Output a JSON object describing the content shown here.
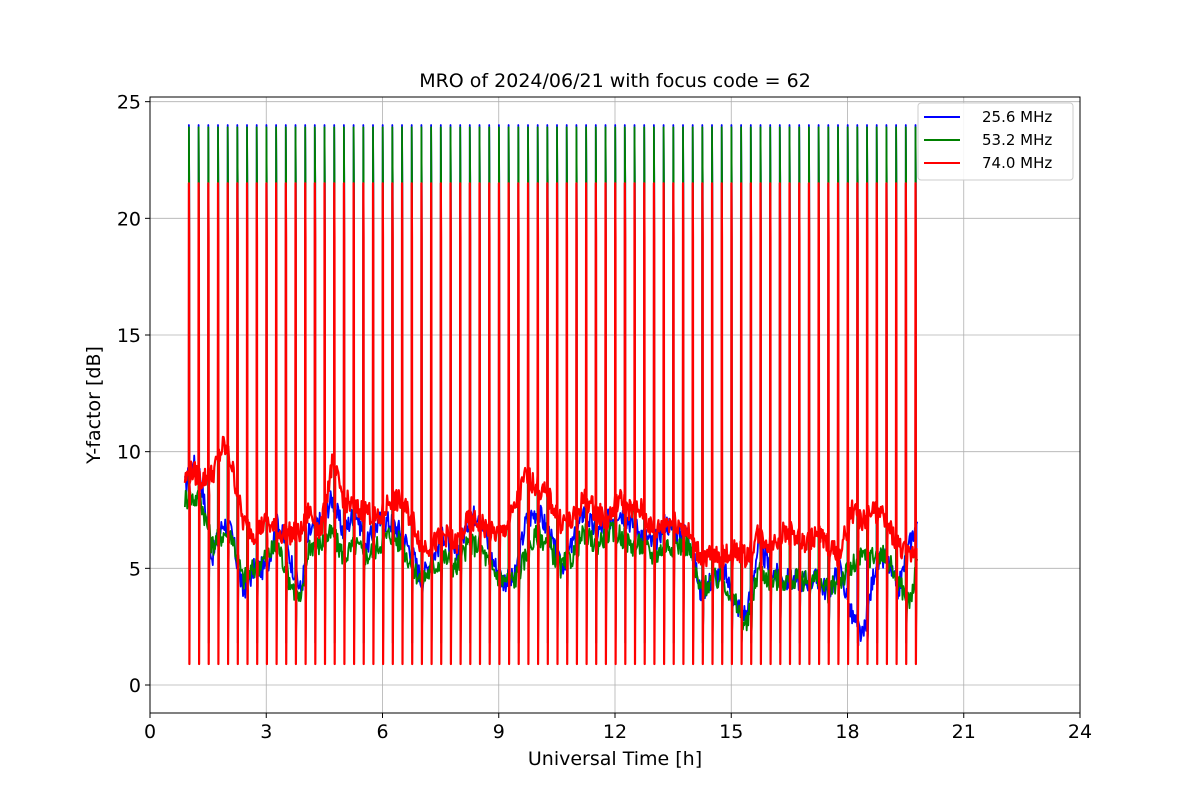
{
  "chart_data": {
    "type": "line",
    "title": "MRO of 2024/06/21 with focus code = 62",
    "xlabel": "Universal Time [h]",
    "ylabel": "Y-factor [dB]",
    "xlim": [
      0,
      24
    ],
    "ylim": [
      -1.2,
      25.2
    ],
    "xticks": [
      0,
      3,
      6,
      9,
      12,
      15,
      18,
      21,
      24
    ],
    "yticks": [
      0,
      5,
      10,
      15,
      20,
      25
    ],
    "grid": true,
    "legend_position": "top-right",
    "series": [
      {
        "name": "25.6 MHz",
        "color": "#0000ff",
        "baseline_x": [
          0.9,
          1.1,
          1.3,
          1.6,
          1.9,
          2.1,
          2.4,
          2.7,
          3.0,
          3.3,
          3.6,
          3.9,
          4.1,
          4.4,
          4.7,
          5.0,
          5.3,
          5.6,
          5.9,
          6.2,
          6.5,
          6.8,
          7.0,
          7.3,
          7.6,
          7.9,
          8.2,
          8.5,
          8.8,
          9.1,
          9.4,
          9.7,
          10.0,
          10.3,
          10.6,
          10.9,
          11.2,
          11.5,
          11.8,
          12.1,
          12.4,
          12.7,
          13.0,
          13.3,
          13.6,
          13.9,
          14.2,
          14.5,
          14.8,
          15.1,
          15.4,
          15.7,
          16.0,
          16.3,
          16.6,
          16.9,
          17.2,
          17.5,
          17.8,
          18.1,
          18.4,
          18.7,
          19.0,
          19.3,
          19.6,
          19.8
        ],
        "baseline_y": [
          8.5,
          9.5,
          9.0,
          5.5,
          7.0,
          6.5,
          4.0,
          5.0,
          5.0,
          7.0,
          5.5,
          4.0,
          6.5,
          7.0,
          8.0,
          6.5,
          7.5,
          6.0,
          7.0,
          7.0,
          6.5,
          5.5,
          4.5,
          5.5,
          6.5,
          5.5,
          7.0,
          7.5,
          5.5,
          4.5,
          4.5,
          7.0,
          7.5,
          6.5,
          5.0,
          6.0,
          7.5,
          6.5,
          7.0,
          7.5,
          7.0,
          6.5,
          6.0,
          7.0,
          6.5,
          6.5,
          4.0,
          4.5,
          5.0,
          3.5,
          3.0,
          6.0,
          5.0,
          4.5,
          4.5,
          4.5,
          4.5,
          4.0,
          5.0,
          3.0,
          2.0,
          5.0,
          5.5,
          4.0,
          6.0,
          7.0
        ],
        "peak": 24.0,
        "trough": 1.8
      },
      {
        "name": "53.2 MHz",
        "color": "#008000",
        "baseline_x": [
          0.9,
          1.1,
          1.3,
          1.6,
          1.9,
          2.1,
          2.4,
          2.7,
          3.0,
          3.3,
          3.6,
          3.9,
          4.1,
          4.4,
          4.7,
          5.0,
          5.3,
          5.6,
          5.9,
          6.2,
          6.5,
          6.8,
          7.0,
          7.3,
          7.6,
          7.9,
          8.2,
          8.5,
          8.8,
          9.1,
          9.4,
          9.7,
          10.0,
          10.3,
          10.6,
          10.9,
          11.2,
          11.5,
          11.8,
          12.1,
          12.4,
          12.7,
          13.0,
          13.3,
          13.6,
          13.9,
          14.2,
          14.5,
          14.8,
          15.1,
          15.4,
          15.7,
          16.0,
          16.3,
          16.6,
          16.9,
          17.2,
          17.5,
          17.8,
          18.1,
          18.4,
          18.7,
          19.0,
          19.3,
          19.6,
          19.8
        ],
        "baseline_y": [
          8.0,
          8.0,
          8.0,
          6.0,
          6.5,
          6.5,
          4.5,
          5.0,
          5.5,
          6.0,
          4.5,
          3.5,
          6.0,
          6.0,
          6.5,
          5.5,
          6.0,
          5.5,
          6.0,
          6.5,
          6.0,
          5.0,
          4.5,
          5.0,
          5.5,
          5.0,
          6.0,
          6.0,
          5.0,
          4.5,
          4.5,
          5.5,
          6.5,
          6.0,
          5.0,
          5.5,
          6.5,
          6.0,
          6.5,
          6.5,
          6.0,
          6.0,
          5.5,
          6.0,
          6.0,
          6.0,
          4.0,
          4.5,
          4.5,
          3.5,
          2.5,
          5.0,
          4.5,
          4.5,
          4.5,
          4.5,
          4.5,
          4.0,
          4.5,
          5.0,
          5.5,
          5.5,
          5.5,
          4.5,
          3.5,
          5.0
        ],
        "peak": 23.9,
        "trough": 1.8
      },
      {
        "name": "74.0 MHz",
        "color": "#ff0000",
        "baseline_x": [
          0.9,
          1.1,
          1.3,
          1.6,
          1.9,
          2.1,
          2.4,
          2.7,
          3.0,
          3.3,
          3.6,
          3.9,
          4.1,
          4.4,
          4.7,
          5.0,
          5.3,
          5.6,
          5.9,
          6.2,
          6.5,
          6.8,
          7.0,
          7.3,
          7.6,
          7.9,
          8.2,
          8.5,
          8.8,
          9.1,
          9.4,
          9.7,
          10.0,
          10.3,
          10.6,
          10.9,
          11.2,
          11.5,
          11.8,
          12.1,
          12.4,
          12.7,
          13.0,
          13.3,
          13.6,
          13.9,
          14.2,
          14.5,
          14.8,
          15.1,
          15.4,
          15.7,
          16.0,
          16.3,
          16.6,
          16.9,
          17.2,
          17.5,
          17.8,
          18.1,
          18.4,
          18.7,
          19.0,
          19.3,
          19.6,
          19.8
        ],
        "baseline_y": [
          8.8,
          9.2,
          8.8,
          9.0,
          10.3,
          9.5,
          7.0,
          6.5,
          7.0,
          6.5,
          6.5,
          6.5,
          7.5,
          6.5,
          9.5,
          8.0,
          7.5,
          7.5,
          7.0,
          8.0,
          7.8,
          7.0,
          6.0,
          6.0,
          6.5,
          6.0,
          7.0,
          7.0,
          6.5,
          6.5,
          7.5,
          9.0,
          8.5,
          8.0,
          7.0,
          7.0,
          8.0,
          7.5,
          7.0,
          8.0,
          7.5,
          7.5,
          6.5,
          7.0,
          7.0,
          6.5,
          5.5,
          5.5,
          5.5,
          5.8,
          5.5,
          6.5,
          6.0,
          6.5,
          6.5,
          6.0,
          6.5,
          6.0,
          5.5,
          7.5,
          7.0,
          7.5,
          7.0,
          6.0,
          5.5,
          6.0
        ],
        "peak": 21.5,
        "trough": 0.9
      }
    ],
    "pulse_period_h": 0.25,
    "pulse_start_h": 1.0,
    "pulse_end_h": 19.8
  }
}
